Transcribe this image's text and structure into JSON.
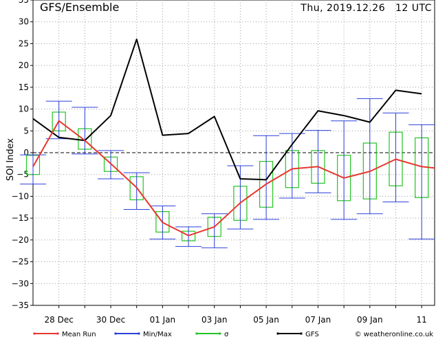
{
  "header": {
    "title": "GFS/Ensemble",
    "timestamp": "Thu, 2019.12.26   12 UTC"
  },
  "footer": {
    "credit": "© weatheronline.co.uk"
  },
  "chart_data": {
    "type": "line",
    "title": "GFS/Ensemble",
    "ylabel": "SOI Index",
    "xlabel": "",
    "ylim": [
      -35,
      35
    ],
    "yticks": [
      35,
      30,
      25,
      20,
      15,
      10,
      5,
      0,
      -5,
      -10,
      -15,
      -20,
      -25,
      -30,
      -35
    ],
    "x_range": [
      0,
      15.5
    ],
    "x_ticks": [
      {
        "pos": 1,
        "label": "28 Dec"
      },
      {
        "pos": 3,
        "label": "30 Dec"
      },
      {
        "pos": 5,
        "label": "01 Jan"
      },
      {
        "pos": 7,
        "label": "03 Jan"
      },
      {
        "pos": 9,
        "label": "05 Jan"
      },
      {
        "pos": 11,
        "label": "07 Jan"
      },
      {
        "pos": 13,
        "label": "09 Jan"
      },
      {
        "pos": 15,
        "label": "11"
      }
    ],
    "grid": true,
    "zero_line": "dashed",
    "colors": {
      "mean": "#e8362e",
      "minmax": "#2b3fd9",
      "sigma": "#22c322",
      "gfs": "#000000"
    },
    "legend_position": "bottom",
    "series": [
      {
        "name": "Mean Run",
        "color": "#e8362e",
        "x": [
          0,
          1,
          2,
          3,
          4,
          5,
          6,
          7,
          8,
          9,
          10,
          11,
          12,
          13,
          14,
          15,
          15.5
        ],
        "values": [
          -3.2,
          7.3,
          2.8,
          -2.5,
          -8,
          -16,
          -19,
          -17,
          -11.5,
          -7.2,
          -3.7,
          -3.2,
          -5.8,
          -4.3,
          -1.5,
          -3.2,
          -3.5
        ]
      },
      {
        "name": "Min/Max",
        "color": "#2b3fd9",
        "x": [
          0,
          1,
          2,
          3,
          4,
          5,
          6,
          7,
          8,
          9,
          10,
          11,
          12,
          13,
          14,
          15
        ],
        "min": [
          -7.2,
          3.2,
          -0.3,
          -6.0,
          -13.0,
          -19.8,
          -21.5,
          -21.8,
          -17.5,
          -15.3,
          -10.4,
          -9.2,
          -15.3,
          -14.0,
          -11.3,
          -19.8
        ],
        "max": [
          -0.5,
          11.8,
          10.4,
          0.5,
          -4.6,
          -12.2,
          -17.0,
          -14.0,
          -3.0,
          3.9,
          4.4,
          5.1,
          7.3,
          12.4,
          9.1,
          6.4
        ]
      },
      {
        "name": "σ",
        "color": "#22c322",
        "x": [
          0,
          1,
          2,
          3,
          4,
          5,
          6,
          7,
          8,
          9,
          10,
          11,
          12,
          13,
          14,
          15
        ],
        "low": [
          -5.0,
          5.0,
          0.8,
          -4.3,
          -10.8,
          -18.2,
          -20.2,
          -19.2,
          -15.5,
          -12.5,
          -8.0,
          -7.0,
          -11.0,
          -10.6,
          -7.6,
          -10.3
        ],
        "high": [
          -0.6,
          9.3,
          5.5,
          -1.0,
          -5.5,
          -13.5,
          -18.0,
          -14.8,
          -7.7,
          -2.0,
          0.5,
          0.5,
          -0.6,
          2.2,
          4.7,
          3.4
        ]
      },
      {
        "name": "GFS",
        "color": "#000000",
        "x": [
          0,
          1,
          2,
          3,
          4,
          5,
          6,
          7,
          8,
          9,
          10,
          11,
          12,
          13,
          14,
          15
        ],
        "values": [
          7.8,
          3.5,
          2.8,
          8.5,
          26.0,
          4.0,
          4.4,
          8.3,
          -6.0,
          -6.2,
          1.9,
          9.6,
          8.5,
          7.0,
          14.3,
          13.5
        ]
      }
    ]
  }
}
